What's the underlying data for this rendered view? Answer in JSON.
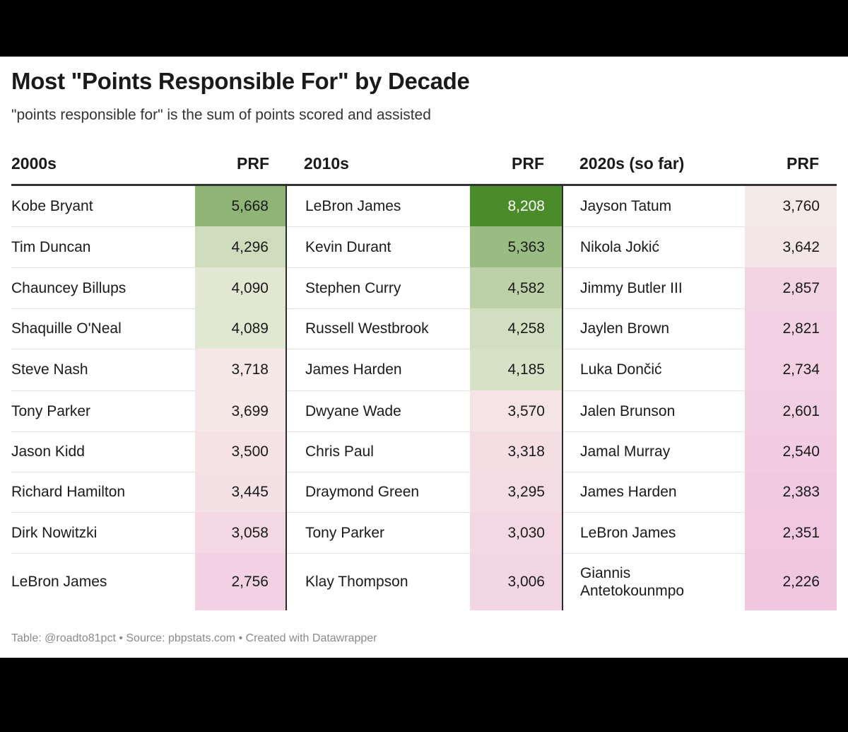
{
  "title": "Most \"Points Responsible For\" by Decade",
  "subtitle": "\"points responsible for\" is the sum of points scored and assisted",
  "footer": "Table: @roadto81pct • Source: pbpstats.com • Created with Datawrapper",
  "colors": {
    "background": "#ffffff",
    "frame": "#000000",
    "high": "#4a8c2a",
    "mid": "#f6f4e8",
    "low": "#f1c6e0"
  },
  "chart_data": {
    "type": "table",
    "columns": [
      {
        "header": "2000s",
        "value_header": "PRF"
      },
      {
        "header": "2010s",
        "value_header": "PRF"
      },
      {
        "header": "2020s (so far)",
        "value_header": "PRF"
      }
    ],
    "groups": [
      {
        "decade": "2000s",
        "rows": [
          {
            "player": "Kobe Bryant",
            "prf": 5668,
            "display": "5,668"
          },
          {
            "player": "Tim Duncan",
            "prf": 4296,
            "display": "4,296"
          },
          {
            "player": "Chauncey Billups",
            "prf": 4090,
            "display": "4,090"
          },
          {
            "player": "Shaquille O'Neal",
            "prf": 4089,
            "display": "4,089"
          },
          {
            "player": "Steve Nash",
            "prf": 3718,
            "display": "3,718"
          },
          {
            "player": "Tony Parker",
            "prf": 3699,
            "display": "3,699"
          },
          {
            "player": "Jason Kidd",
            "prf": 3500,
            "display": "3,500"
          },
          {
            "player": "Richard Hamilton",
            "prf": 3445,
            "display": "3,445"
          },
          {
            "player": "Dirk Nowitzki",
            "prf": 3058,
            "display": "3,058"
          },
          {
            "player": "LeBron James",
            "prf": 2756,
            "display": "2,756"
          }
        ]
      },
      {
        "decade": "2010s",
        "rows": [
          {
            "player": "LeBron James",
            "prf": 8208,
            "display": "8,208"
          },
          {
            "player": "Kevin Durant",
            "prf": 5363,
            "display": "5,363"
          },
          {
            "player": "Stephen Curry",
            "prf": 4582,
            "display": "4,582"
          },
          {
            "player": "Russell Westbrook",
            "prf": 4258,
            "display": "4,258"
          },
          {
            "player": "James Harden",
            "prf": 4185,
            "display": "4,185"
          },
          {
            "player": "Dwyane Wade",
            "prf": 3570,
            "display": "3,570"
          },
          {
            "player": "Chris Paul",
            "prf": 3318,
            "display": "3,318"
          },
          {
            "player": "Draymond Green",
            "prf": 3295,
            "display": "3,295"
          },
          {
            "player": "Tony Parker",
            "prf": 3030,
            "display": "3,030"
          },
          {
            "player": "Klay Thompson",
            "prf": 3006,
            "display": "3,006"
          }
        ]
      },
      {
        "decade": "2020s (so far)",
        "rows": [
          {
            "player": "Jayson Tatum",
            "prf": 3760,
            "display": "3,760"
          },
          {
            "player": "Nikola Jokić",
            "prf": 3642,
            "display": "3,642"
          },
          {
            "player": "Jimmy Butler III",
            "prf": 2857,
            "display": "2,857"
          },
          {
            "player": "Jaylen Brown",
            "prf": 2821,
            "display": "2,821"
          },
          {
            "player": "Luka Dončić",
            "prf": 2734,
            "display": "2,734"
          },
          {
            "player": "Jalen Brunson",
            "prf": 2601,
            "display": "2,601"
          },
          {
            "player": "Jamal Murray",
            "prf": 2540,
            "display": "2,540"
          },
          {
            "player": "James Harden",
            "prf": 2383,
            "display": "2,383"
          },
          {
            "player": "LeBron James",
            "prf": 2351,
            "display": "2,351"
          },
          {
            "player": "Giannis Antetokounmpo",
            "prf": 2226,
            "display": "2,226"
          }
        ]
      }
    ]
  }
}
